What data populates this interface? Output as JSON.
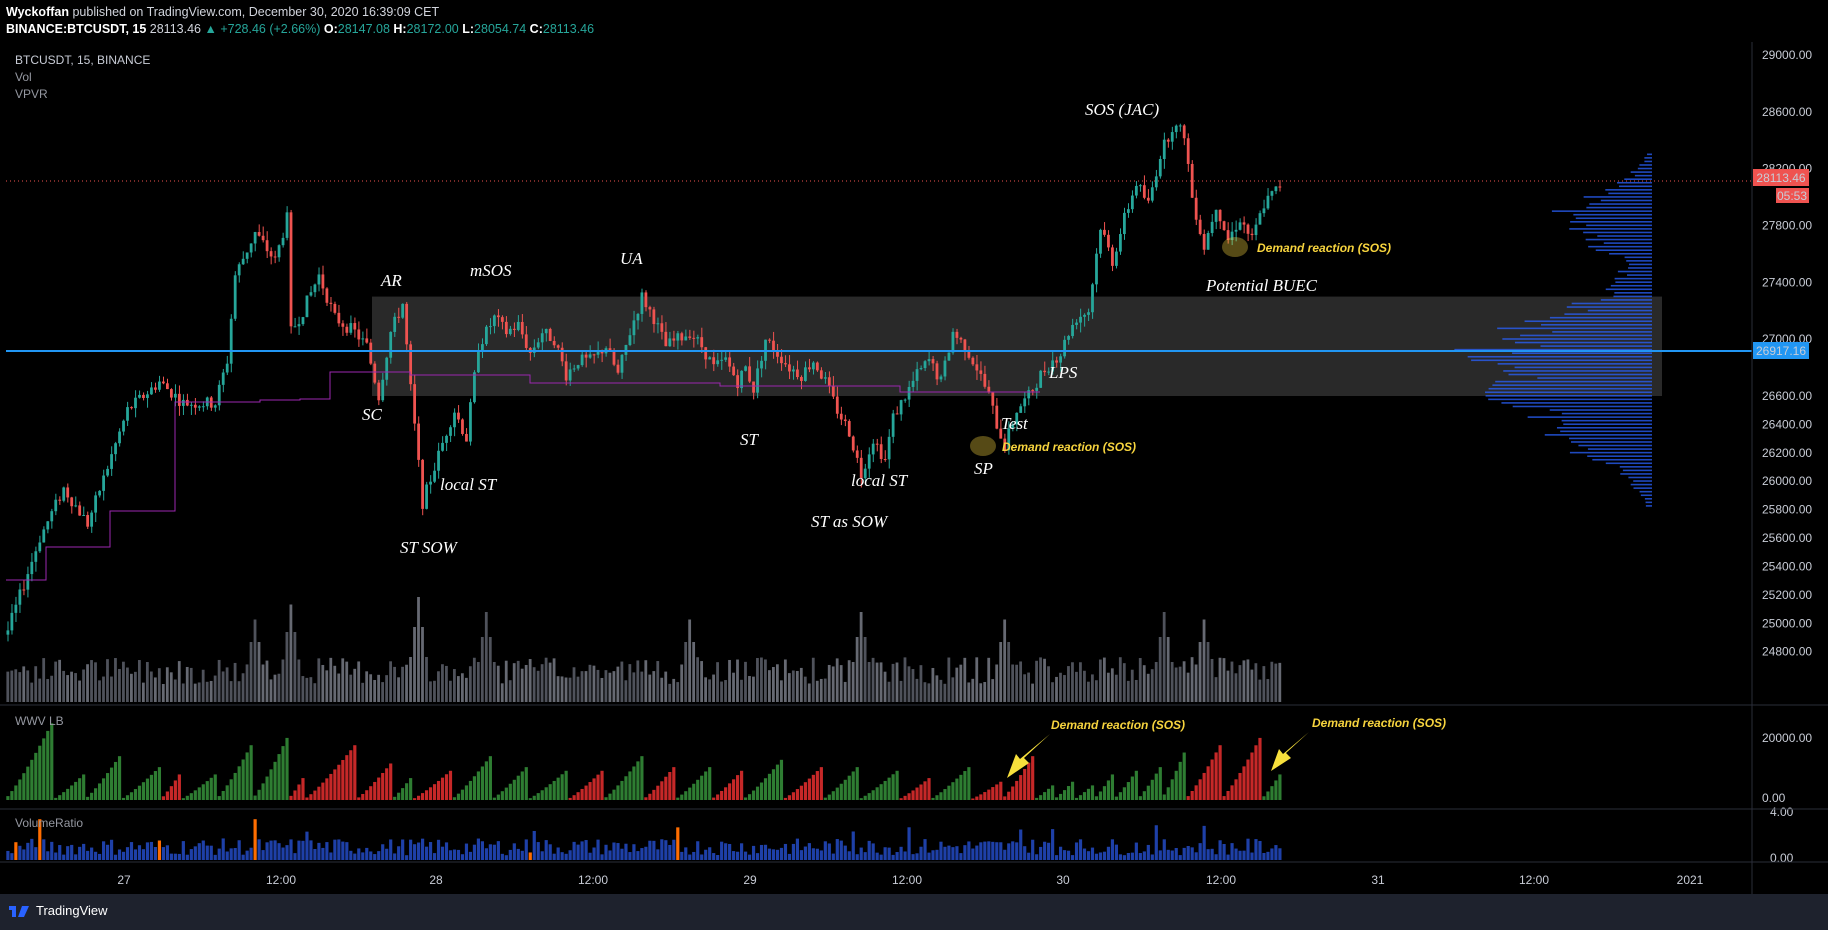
{
  "header": {
    "author": "Wyckoffan",
    "published": "published on TradingView.com, December 30, 2020 16:39:09 CET",
    "symbol": "BINANCE:BTCUSDT, 15",
    "last": "28113.46",
    "change": "▲ +728.46 (+2.66%)",
    "o_label": "O:",
    "o_val": "28147.08",
    "h_label": "H:",
    "h_val": "28172.00",
    "l_label": "L:",
    "l_val": "28054.74",
    "c_label": "C:",
    "c_val": "28113.46"
  },
  "pane_labels": {
    "title": "BTCUSDT, 15, BINANCE",
    "vol": "Vol",
    "vpvr": "VPVR",
    "wwv": "WWV LB",
    "ratio": "VolumeRatio"
  },
  "price_badges": {
    "last": "28113.46",
    "countdown": "05:53",
    "level": "26917.16"
  },
  "annotations": {
    "sos_jac": "SOS (JAC)",
    "ar": "AR",
    "msos": "mSOS",
    "ua": "UA",
    "sc": "SC",
    "local_st_1": "local ST",
    "st_sow": "ST SOW",
    "st_1": "ST",
    "st_as_sow": "ST as SOW",
    "local_st_2": "local ST",
    "sp": "SP",
    "test": "Test",
    "lps": "LPS",
    "potential_buec": "Potential BUEC",
    "demand_1": "Demand reaction (SOS)",
    "demand_2": "Demand reaction (SOS)",
    "demand_3": "Demand reaction (SOS)",
    "demand_4": "Demand reaction (SOS)"
  },
  "footer": {
    "brand": "TradingView"
  },
  "colors": {
    "up": "#26a69a",
    "down": "#ef5350",
    "level": "#2196f3",
    "range": "#787b86",
    "accent": "#f7d43e"
  },
  "chart_data": {
    "type": "candlestick",
    "title": "BTCUSDT, 15, BINANCE",
    "x_ticks": [
      "27",
      "12:00",
      "28",
      "12:00",
      "29",
      "12:00",
      "30",
      "12:00",
      "31",
      "12:00",
      "2021"
    ],
    "y_ticks": [
      "29000.00",
      "28600.00",
      "28200.00",
      "27800.00",
      "27400.00",
      "27000.00",
      "26600.00",
      "26400.00",
      "26200.00",
      "26000.00",
      "25800.00",
      "25600.00",
      "25400.00",
      "25200.00",
      "25000.00",
      "24800.00"
    ],
    "ylim": [
      24650,
      29050
    ],
    "wwv_ticks": [
      "20000.00",
      "0.00"
    ],
    "ratio_ticks": [
      "4.00",
      "0.00"
    ],
    "last_price": 28113.46,
    "horizontal_level": 26917.16,
    "range_box": [
      26600,
      27300
    ],
    "close_path": [
      [
        0,
        24950
      ],
      [
        8,
        25600
      ],
      [
        14,
        25950
      ],
      [
        20,
        25700
      ],
      [
        30,
        26500
      ],
      [
        38,
        26700
      ],
      [
        44,
        26550
      ],
      [
        52,
        26550
      ],
      [
        55,
        26850
      ],
      [
        57,
        27450
      ],
      [
        62,
        27750
      ],
      [
        67,
        27550
      ],
      [
        70,
        27850
      ],
      [
        71,
        27050
      ],
      [
        74,
        27200
      ],
      [
        78,
        27450
      ],
      [
        82,
        27150
      ],
      [
        87,
        27050
      ],
      [
        90,
        26950
      ],
      [
        93,
        26600
      ],
      [
        96,
        27050
      ],
      [
        99,
        27250
      ],
      [
        101,
        26650
      ],
      [
        104,
        25850
      ],
      [
        107,
        26100
      ],
      [
        110,
        26350
      ],
      [
        112,
        26500
      ],
      [
        115,
        26300
      ],
      [
        118,
        26950
      ],
      [
        122,
        27150
      ],
      [
        125,
        27050
      ],
      [
        128,
        27100
      ],
      [
        131,
        26900
      ],
      [
        134,
        27050
      ],
      [
        137,
        27000
      ],
      [
        140,
        26750
      ],
      [
        143,
        26850
      ],
      [
        146,
        26850
      ],
      [
        150,
        26950
      ],
      [
        153,
        26750
      ],
      [
        156,
        27050
      ],
      [
        159,
        27300
      ],
      [
        162,
        27150
      ],
      [
        165,
        26950
      ],
      [
        168,
        27000
      ],
      [
        171,
        27050
      ],
      [
        174,
        26950
      ],
      [
        177,
        26800
      ],
      [
        180,
        26850
      ],
      [
        183,
        26700
      ],
      [
        185,
        26800
      ],
      [
        187,
        26650
      ],
      [
        190,
        27000
      ],
      [
        193,
        26900
      ],
      [
        196,
        26800
      ],
      [
        199,
        26750
      ],
      [
        202,
        26850
      ],
      [
        205,
        26700
      ],
      [
        208,
        26500
      ],
      [
        211,
        26350
      ],
      [
        214,
        26050
      ],
      [
        217,
        26300
      ],
      [
        220,
        26150
      ],
      [
        222,
        26450
      ],
      [
        225,
        26600
      ],
      [
        228,
        26750
      ],
      [
        231,
        26850
      ],
      [
        234,
        26700
      ],
      [
        237,
        27050
      ],
      [
        240,
        26950
      ],
      [
        243,
        26800
      ],
      [
        246,
        26600
      ],
      [
        248,
        26400
      ],
      [
        250,
        26250
      ],
      [
        253,
        26500
      ],
      [
        256,
        26600
      ],
      [
        259,
        26750
      ],
      [
        262,
        26850
      ],
      [
        264,
        26900
      ],
      [
        266,
        27050
      ],
      [
        268,
        27150
      ],
      [
        271,
        27200
      ],
      [
        274,
        27800
      ],
      [
        277,
        27550
      ],
      [
        280,
        27850
      ],
      [
        283,
        28100
      ],
      [
        286,
        27950
      ],
      [
        289,
        28300
      ],
      [
        292,
        28500
      ],
      [
        295,
        28450
      ],
      [
        297,
        28000
      ],
      [
        300,
        27650
      ],
      [
        303,
        27950
      ],
      [
        306,
        27700
      ],
      [
        309,
        27850
      ],
      [
        312,
        27700
      ],
      [
        315,
        27950
      ],
      [
        318,
        28050
      ],
      [
        320,
        28113
      ]
    ],
    "volume_peaks": [
      [
        62,
        0.45
      ],
      [
        71,
        0.55
      ],
      [
        103,
        0.6
      ],
      [
        120,
        0.5
      ],
      [
        171,
        0.45
      ],
      [
        214,
        0.5
      ],
      [
        250,
        0.45
      ],
      [
        290,
        0.5
      ],
      [
        300,
        0.45
      ]
    ],
    "wwv_waves": [
      [
        0,
        12,
        21000,
        "up"
      ],
      [
        12,
        20,
        7000,
        "up"
      ],
      [
        20,
        29,
        12000,
        "up"
      ],
      [
        29,
        39,
        9000,
        "up"
      ],
      [
        39,
        44,
        7000,
        "down"
      ],
      [
        44,
        53,
        7000,
        "up"
      ],
      [
        53,
        62,
        15000,
        "up"
      ],
      [
        62,
        71,
        17000,
        "up"
      ],
      [
        71,
        75,
        6000,
        "down"
      ],
      [
        75,
        88,
        15000,
        "down"
      ],
      [
        88,
        97,
        10000,
        "down"
      ],
      [
        97,
        102,
        6000,
        "up"
      ],
      [
        102,
        112,
        8000,
        "down"
      ],
      [
        112,
        122,
        12000,
        "up"
      ],
      [
        122,
        131,
        9000,
        "up"
      ],
      [
        131,
        141,
        8000,
        "up"
      ],
      [
        141,
        150,
        8000,
        "down"
      ],
      [
        150,
        160,
        12000,
        "up"
      ],
      [
        160,
        168,
        9000,
        "down"
      ],
      [
        168,
        177,
        9000,
        "up"
      ],
      [
        177,
        185,
        8000,
        "down"
      ],
      [
        185,
        195,
        11000,
        "up"
      ],
      [
        195,
        205,
        9000,
        "down"
      ],
      [
        205,
        214,
        9000,
        "up"
      ],
      [
        214,
        224,
        8000,
        "up"
      ],
      [
        224,
        232,
        6000,
        "down"
      ],
      [
        232,
        242,
        9000,
        "up"
      ],
      [
        242,
        250,
        5000,
        "down"
      ],
      [
        250,
        258,
        12000,
        "down"
      ],
      [
        258,
        263,
        4000,
        "up"
      ],
      [
        263,
        268,
        5000,
        "up"
      ],
      [
        268,
        273,
        4000,
        "up"
      ],
      [
        273,
        278,
        7000,
        "up"
      ],
      [
        278,
        284,
        8000,
        "up"
      ],
      [
        284,
        290,
        9000,
        "up"
      ],
      [
        290,
        296,
        13000,
        "up"
      ],
      [
        296,
        305,
        15000,
        "down"
      ],
      [
        305,
        315,
        17000,
        "down"
      ],
      [
        315,
        320,
        7000,
        "up"
      ]
    ]
  }
}
